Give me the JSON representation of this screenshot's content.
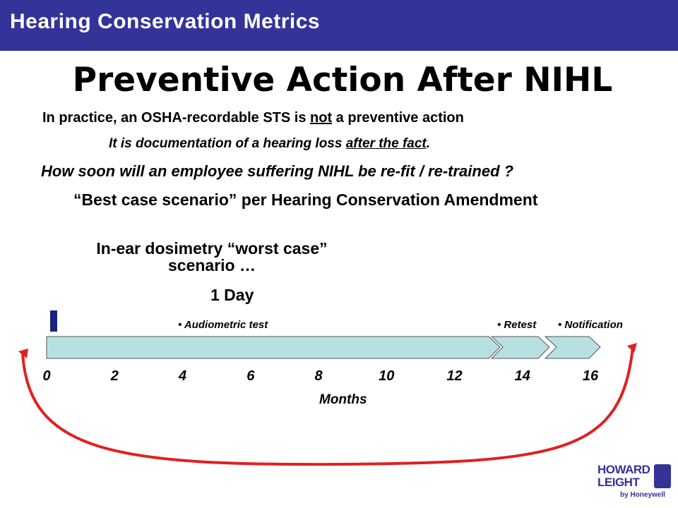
{
  "header": {
    "title": "Hearing Conservation Metrics"
  },
  "slide": {
    "title": "Preventive Action After NIHL",
    "line1": {
      "a": "In practice, an OSHA-recordable STS is ",
      "u": "not",
      "b": " a preventive action"
    },
    "line2": {
      "a": "It is documentation of a hearing loss ",
      "u": "after the fact",
      "b": "."
    },
    "line3": "How soon will an employee suffering NIHL be re-fit / re-trained ?",
    "line4": "“Best case scenario” per Hearing Conservation Amendment",
    "worst_case": {
      "line1": "In-ear dosimetry “worst case”",
      "line2": "scenario …"
    },
    "one_day": "1 Day"
  },
  "timeline": {
    "ticks": [
      "0",
      "2",
      "4",
      "6",
      "8",
      "10",
      "12",
      "14",
      "16"
    ],
    "axis_label": "Months",
    "events": {
      "audiometric": "• Audiometric test",
      "retest": "• Retest",
      "notification": "• Notification"
    },
    "colors": {
      "bar_fill": "#b7e0e2",
      "marker": "#1a237e",
      "arrow": "#e02020"
    }
  },
  "logo": {
    "line1": "HOWARD",
    "line2": "LEIGHT",
    "line3": "by Honeywell"
  }
}
